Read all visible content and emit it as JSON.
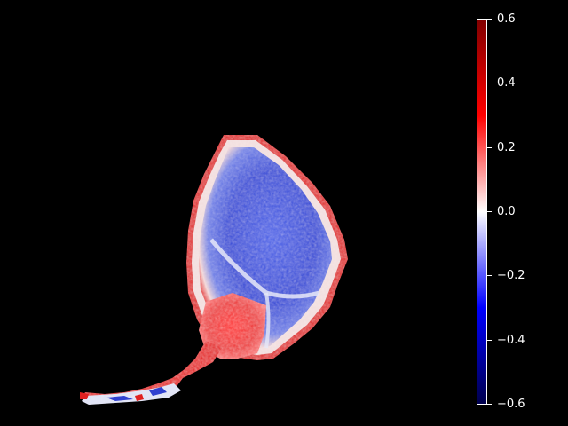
{
  "colorbar": {
    "colormap": "seismic",
    "vmin": -0.6,
    "vmax": 0.6,
    "colors": {
      "low_end": "#00004c",
      "low": "#0000ff",
      "mid": "#ffffff",
      "high": "#ff0000",
      "high_end": "#800000"
    },
    "ticks": [
      {
        "value": 0.6,
        "label": "0.6"
      },
      {
        "value": 0.4,
        "label": "0.4"
      },
      {
        "value": 0.2,
        "label": "0.2"
      },
      {
        "value": 0.0,
        "label": "0.0"
      },
      {
        "value": -0.2,
        "label": "−0.2"
      },
      {
        "value": -0.4,
        "label": "−0.4"
      },
      {
        "value": -0.6,
        "label": "−0.6"
      }
    ]
  },
  "image": {
    "background": "#000000",
    "description_colors": {
      "bulb_interior": "#3a4fd8",
      "rim": "#e03030",
      "stem": "#e81818"
    }
  }
}
